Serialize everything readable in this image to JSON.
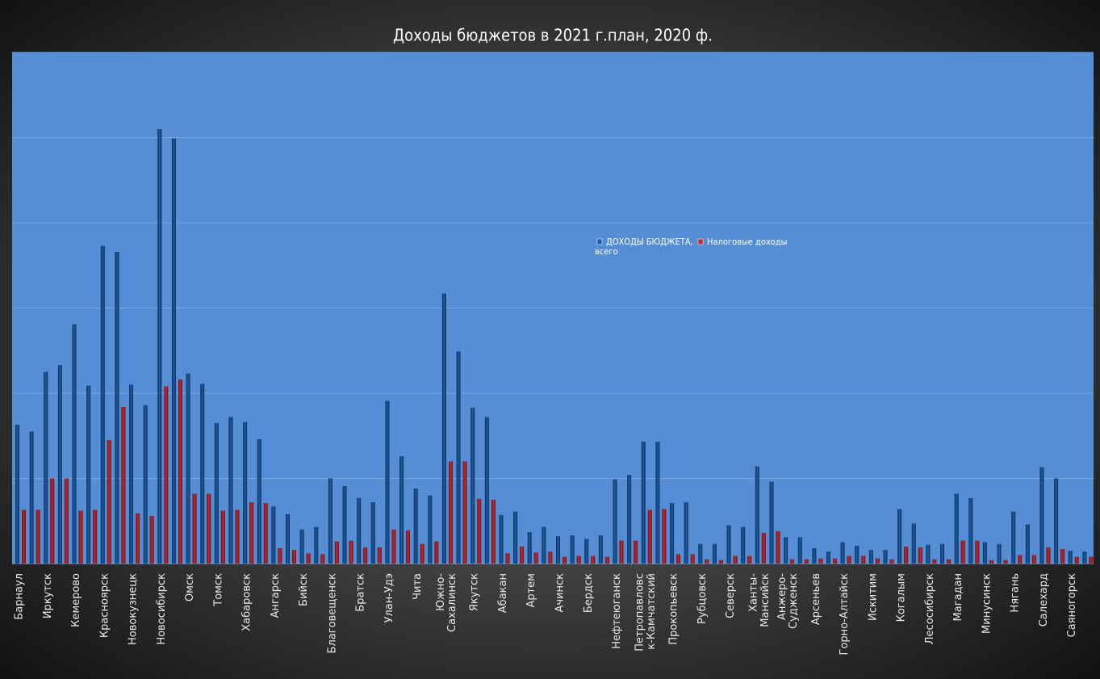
{
  "chart_data": {
    "type": "bar",
    "title": "Доходы бюджетов в 2021 г.план, 2020 ф.",
    "categories": [
      "Барнаул",
      null,
      "Иркутск",
      null,
      "Кемерово",
      null,
      "Красноярск",
      null,
      "Новокузнецк",
      null,
      "Новосибирск",
      null,
      "Омск",
      null,
      "Томск",
      null,
      "Хабаровск",
      null,
      "Ангарск",
      null,
      "Бийск",
      null,
      "Благовещенск",
      null,
      "Братск",
      null,
      "Улан-Удэ",
      null,
      "Чита",
      null,
      "Южно-\nСахалинск",
      null,
      "Якутск",
      null,
      "Абакан",
      null,
      "Артем",
      null,
      "Ачинск",
      null,
      "Бердск",
      null,
      "Нефтеюганск",
      null,
      "Петропавловс\nк-Камчатский",
      null,
      "Прокопьевск",
      null,
      "Рубцовск",
      null,
      "Северск",
      null,
      "Ханты-\nМансийск",
      null,
      "Анжеро-\nСудженск",
      null,
      "Арсеньев",
      null,
      "Горно-Алтайск",
      null,
      "Искитим",
      null,
      "Когалым",
      null,
      "Лесосибирск",
      null,
      "Магадан",
      null,
      "Минусинск",
      null,
      "Нягань",
      null,
      "Салехард",
      null,
      "Саяногорск",
      null
    ],
    "series": [
      {
        "name": "ДОХОДЫ БЮДЖЕТА,\nвсего",
        "color": "#1f5ea6",
        "values": [
          1.63,
          1.55,
          2.25,
          2.33,
          2.81,
          2.09,
          3.73,
          3.66,
          2.1,
          1.86,
          5.1,
          4.99,
          2.23,
          2.11,
          1.65,
          1.72,
          1.66,
          1.46,
          0.67,
          0.58,
          0.4,
          0.43,
          1.0,
          0.91,
          0.77,
          0.72,
          1.91,
          1.26,
          0.88,
          0.8,
          3.17,
          2.49,
          1.83,
          1.72,
          0.57,
          0.61,
          0.37,
          0.43,
          0.32,
          0.33,
          0.29,
          0.33,
          0.99,
          1.04,
          1.43,
          1.43,
          0.71,
          0.72,
          0.23,
          0.23,
          0.45,
          0.43,
          1.14,
          0.96,
          0.31,
          0.31,
          0.18,
          0.14,
          0.25,
          0.21,
          0.16,
          0.16,
          0.64,
          0.47,
          0.22,
          0.23,
          0.82,
          0.77,
          0.25,
          0.23,
          0.61,
          0.46,
          1.13,
          1.0,
          0.15,
          0.14
        ]
      },
      {
        "name": "Налоговые доходы",
        "color": "#c8292c",
        "values": [
          0.63,
          0.63,
          1.0,
          1.0,
          0.62,
          0.63,
          1.45,
          1.84,
          0.59,
          0.56,
          2.08,
          2.16,
          0.82,
          0.82,
          0.62,
          0.63,
          0.72,
          0.71,
          0.18,
          0.16,
          0.12,
          0.11,
          0.26,
          0.27,
          0.19,
          0.19,
          0.4,
          0.39,
          0.23,
          0.26,
          1.2,
          1.2,
          0.76,
          0.75,
          0.12,
          0.2,
          0.13,
          0.14,
          0.08,
          0.09,
          0.09,
          0.08,
          0.27,
          0.27,
          0.63,
          0.64,
          0.11,
          0.11,
          0.05,
          0.04,
          0.09,
          0.09,
          0.36,
          0.38,
          0.05,
          0.05,
          0.06,
          0.06,
          0.09,
          0.09,
          0.06,
          0.05,
          0.2,
          0.19,
          0.05,
          0.05,
          0.27,
          0.27,
          0.04,
          0.04,
          0.1,
          0.1,
          0.19,
          0.17,
          0.08,
          0.08
        ]
      }
    ],
    "ylim": [
      0,
      6
    ],
    "yticks": [
      0,
      1,
      2,
      3,
      4,
      5,
      6
    ],
    "grid": true,
    "legend": "center"
  }
}
